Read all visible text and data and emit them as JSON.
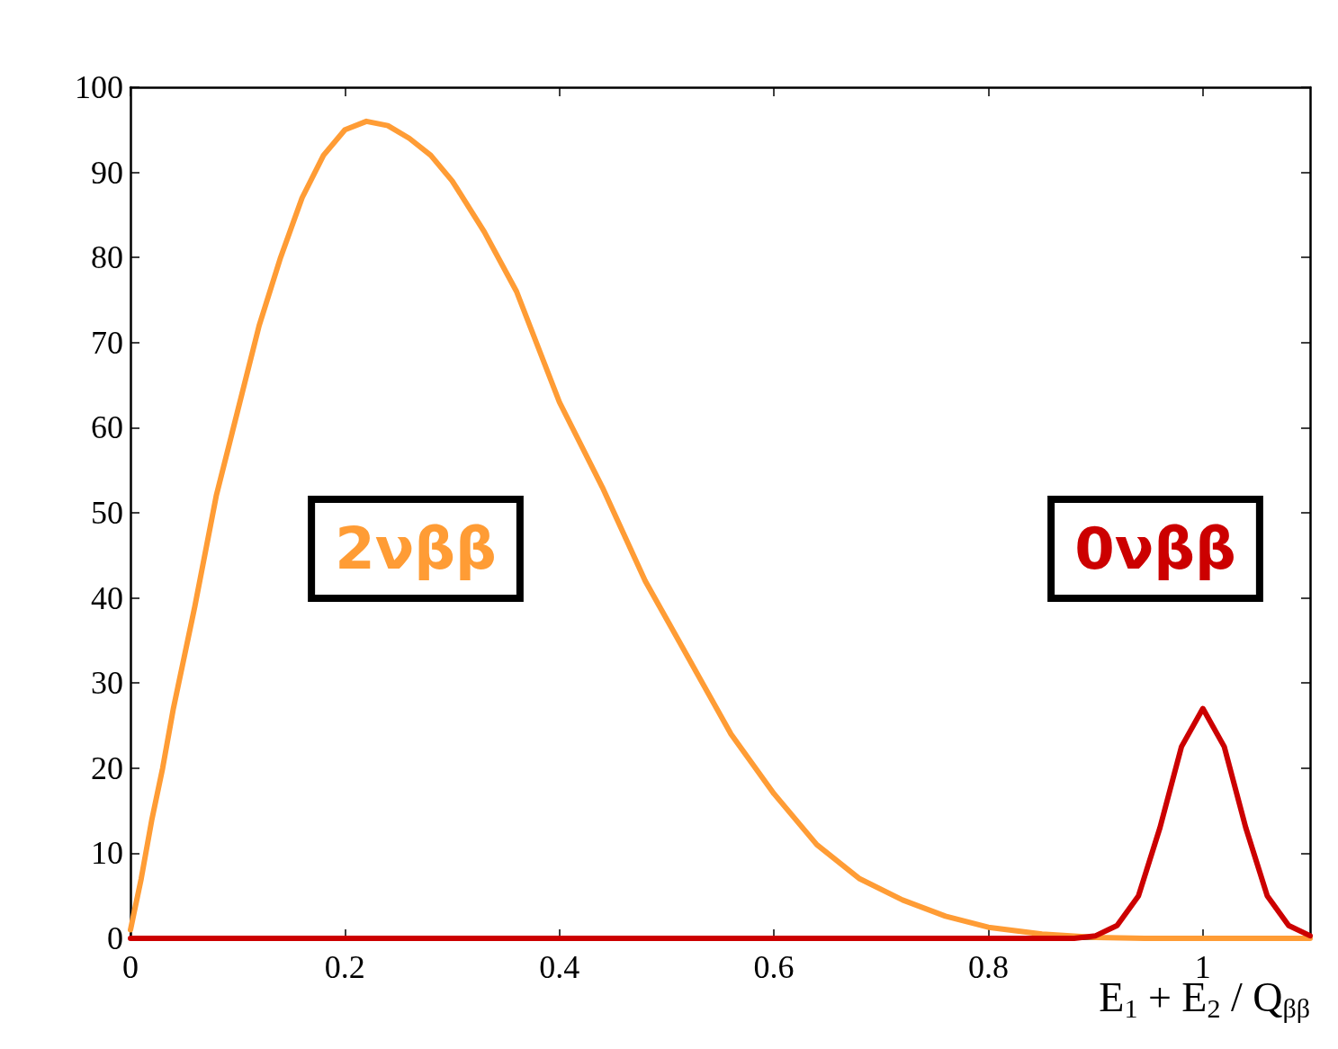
{
  "chart_data": {
    "type": "line",
    "xlabel": "E$_{1}$ + E$_{2}$ / Q$_{ββ}$",
    "xlim": [
      0,
      1.1
    ],
    "xticks": [
      0,
      0.2,
      0.4,
      0.6,
      0.8,
      1
    ],
    "ylim": [
      0,
      100
    ],
    "yticks": [
      0,
      10,
      20,
      30,
      40,
      50,
      60,
      70,
      80,
      90,
      100
    ],
    "grid": false,
    "legend": false,
    "marker": "none",
    "line_style": "solid",
    "series": [
      {
        "name": "2νββ",
        "color": "#ff9c35",
        "x": [
          0,
          0.01,
          0.02,
          0.03,
          0.04,
          0.05,
          0.06,
          0.08,
          0.1,
          0.12,
          0.14,
          0.16,
          0.18,
          0.2,
          0.22,
          0.24,
          0.26,
          0.28,
          0.3,
          0.33,
          0.36,
          0.4,
          0.44,
          0.48,
          0.52,
          0.56,
          0.6,
          0.64,
          0.68,
          0.72,
          0.76,
          0.8,
          0.85,
          0.9,
          0.95,
          1.1
        ],
        "values": [
          1,
          7,
          14,
          20,
          27,
          33,
          39,
          52,
          62,
          72,
          80,
          87,
          92,
          95,
          96,
          95.5,
          94,
          92,
          89,
          83,
          76,
          63,
          53,
          42,
          33,
          24,
          17,
          11,
          7,
          4.5,
          2.6,
          1.3,
          0.5,
          0.1,
          0,
          0
        ]
      },
      {
        "name": "0νββ",
        "color": "#cc0000",
        "x": [
          0,
          0.88,
          0.9,
          0.92,
          0.94,
          0.96,
          0.98,
          1.0,
          1.02,
          1.04,
          1.06,
          1.08,
          1.1
        ],
        "values": [
          0,
          0,
          0.3,
          1.5,
          5,
          13,
          22.5,
          27,
          22.5,
          13,
          5,
          1.5,
          0.3
        ]
      }
    ]
  }
}
